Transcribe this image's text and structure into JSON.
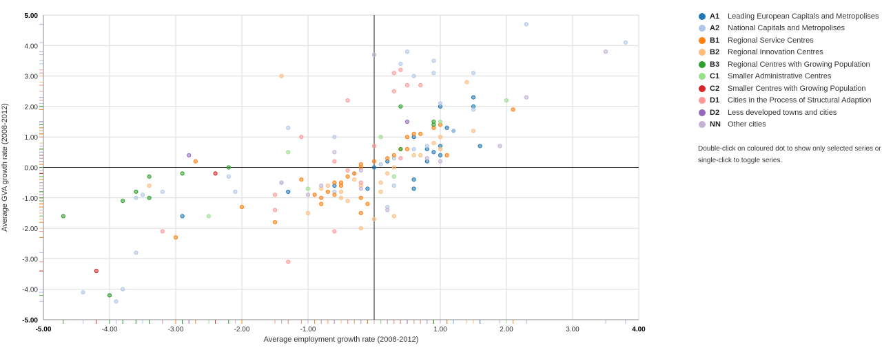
{
  "chart_data": {
    "type": "scatter",
    "xlabel": "Average employment growth rate (2008-2012)",
    "ylabel": "Average GVA growth rate (2008-2012)",
    "xlim": [
      -5,
      4
    ],
    "ylim": [
      -5,
      5
    ],
    "x_ticks": [
      "-5.00",
      "-4.00",
      "-3.00",
      "-2.00",
      "-1.00",
      "1.00",
      "2.00",
      "3.00",
      "4.00"
    ],
    "y_ticks": [
      "5.00",
      "4.00",
      "3.00",
      "2.00",
      "1.00",
      "0.00",
      "-1.00",
      "-2.00",
      "-3.00",
      "-4.00",
      "-5.00"
    ],
    "grid": true,
    "legend_position": "right",
    "series": [
      {
        "code": "A1",
        "name": "Leading European Capitals and Metropolises",
        "color": "#1f77b4",
        "points": [
          [
            1.5,
            2.3
          ],
          [
            1.5,
            2.0
          ],
          [
            1.6,
            0.7
          ],
          [
            1.2,
            1.2
          ],
          [
            1.1,
            1.3
          ],
          [
            1.0,
            2.0
          ],
          [
            1.0,
            0.7
          ],
          [
            1.0,
            0.4
          ],
          [
            0.9,
            0.5
          ],
          [
            0.8,
            0.6
          ],
          [
            0.8,
            0.2
          ],
          [
            0.6,
            1.0
          ],
          [
            0.6,
            -0.4
          ],
          [
            0.6,
            -0.7
          ],
          [
            0.2,
            0.2
          ],
          [
            0.0,
            0.0
          ],
          [
            -0.1,
            -0.7
          ],
          [
            -0.6,
            -0.6
          ],
          [
            -1.3,
            -0.8
          ],
          [
            -2.9,
            -1.6
          ]
        ]
      },
      {
        "code": "A2",
        "name": "National Capitals and Metropolises",
        "color": "#aec7e8",
        "points": [
          [
            2.3,
            4.7
          ],
          [
            3.8,
            4.1
          ],
          [
            0.5,
            3.8
          ],
          [
            0.9,
            3.5
          ],
          [
            0.4,
            3.4
          ],
          [
            0.6,
            3.0
          ],
          [
            0.9,
            3.1
          ],
          [
            1.5,
            3.1
          ],
          [
            1.0,
            2.1
          ],
          [
            1.5,
            1.9
          ],
          [
            1.2,
            1.2
          ],
          [
            0.8,
            0.7
          ],
          [
            0.6,
            0.6
          ],
          [
            0.3,
            0.3
          ],
          [
            0.1,
            0.1
          ],
          [
            -0.6,
            1.0
          ],
          [
            -1.3,
            1.3
          ],
          [
            -0.3,
            -0.2
          ],
          [
            -0.6,
            -0.8
          ],
          [
            -2.1,
            -0.8
          ],
          [
            -2.2,
            -0.3
          ],
          [
            -1.4,
            -0.5
          ],
          [
            -3.2,
            -0.8
          ],
          [
            -3.5,
            -0.9
          ],
          [
            -3.6,
            -1.0
          ],
          [
            -3.6,
            -2.8
          ],
          [
            -3.8,
            -4.0
          ],
          [
            -3.9,
            -4.4
          ],
          [
            -4.4,
            -4.1
          ],
          [
            0.2,
            -1.3
          ],
          [
            0.3,
            -0.6
          ]
        ]
      },
      {
        "code": "B1",
        "name": "Regional Service Centres",
        "color": "#ff7f0e",
        "points": [
          [
            2.1,
            1.9
          ],
          [
            1.0,
            1.4
          ],
          [
            0.9,
            1.3
          ],
          [
            0.7,
            1.1
          ],
          [
            0.6,
            1.1
          ],
          [
            0.5,
            1.0
          ],
          [
            0.4,
            0.6
          ],
          [
            0.5,
            0.6
          ],
          [
            0.3,
            0.4
          ],
          [
            0.2,
            0.3
          ],
          [
            0.0,
            0.2
          ],
          [
            -0.2,
            0.1
          ],
          [
            -0.2,
            0.0
          ],
          [
            -0.3,
            -0.2
          ],
          [
            -0.4,
            -0.3
          ],
          [
            -0.5,
            -0.5
          ],
          [
            -0.5,
            -0.6
          ],
          [
            -0.6,
            -0.5
          ],
          [
            -0.6,
            -0.9
          ],
          [
            -0.7,
            -0.8
          ],
          [
            -0.8,
            -1.0
          ],
          [
            -0.8,
            -1.2
          ],
          [
            -0.9,
            -0.9
          ],
          [
            -0.2,
            -1.0
          ],
          [
            -0.1,
            -1.2
          ],
          [
            -0.2,
            -1.5
          ],
          [
            -1.1,
            -0.4
          ],
          [
            -2.0,
            -1.3
          ],
          [
            -2.7,
            0.2
          ],
          [
            -3.0,
            -2.3
          ],
          [
            -1.5,
            -1.8
          ],
          [
            1.1,
            0.4
          ]
        ]
      },
      {
        "code": "B2",
        "name": "Regional Innovation Centres",
        "color": "#ffbb78",
        "points": [
          [
            1.4,
            2.8
          ],
          [
            1.5,
            1.2
          ],
          [
            1.0,
            1.0
          ],
          [
            0.9,
            0.8
          ],
          [
            0.7,
            0.4
          ],
          [
            0.6,
            0.4
          ],
          [
            0.3,
            0.0
          ],
          [
            0.2,
            -0.2
          ],
          [
            0.1,
            -0.5
          ],
          [
            0.1,
            -0.8
          ],
          [
            -0.2,
            -0.6
          ],
          [
            -0.3,
            -0.4
          ],
          [
            -0.5,
            -0.8
          ],
          [
            -0.5,
            -1.0
          ],
          [
            -0.4,
            -1.1
          ],
          [
            -0.7,
            -0.6
          ],
          [
            -0.8,
            -0.7
          ],
          [
            -1.0,
            -1.5
          ],
          [
            -1.4,
            3.0
          ],
          [
            -0.2,
            -2.0
          ],
          [
            0.0,
            -1.7
          ],
          [
            0.3,
            -1.6
          ],
          [
            1.0,
            0.6
          ],
          [
            -3.4,
            -0.6
          ]
        ]
      },
      {
        "code": "B3",
        "name": "Regional Centres with Growing Population",
        "color": "#2ca02c",
        "points": [
          [
            0.4,
            2.0
          ],
          [
            0.9,
            1.5
          ],
          [
            0.9,
            1.4
          ],
          [
            0.4,
            0.6
          ],
          [
            -2.2,
            0.0
          ],
          [
            -2.9,
            -0.2
          ],
          [
            -3.4,
            -0.3
          ],
          [
            -3.6,
            -0.8
          ],
          [
            -3.4,
            -1.0
          ],
          [
            -3.8,
            -1.1
          ],
          [
            -4.7,
            -1.6
          ],
          [
            -4.0,
            -4.2
          ]
        ]
      },
      {
        "code": "C1",
        "name": "Smaller Administrative Centres",
        "color": "#98df8a",
        "points": [
          [
            2.0,
            2.2
          ],
          [
            1.0,
            1.5
          ],
          [
            0.1,
            1.0
          ],
          [
            0.3,
            -0.3
          ],
          [
            -1.3,
            0.5
          ],
          [
            -1.0,
            -0.7
          ],
          [
            -2.5,
            -1.6
          ]
        ]
      },
      {
        "code": "C2",
        "name": "Smaller Centres with Growing Population",
        "color": "#d62728",
        "points": [
          [
            -2.4,
            -0.2
          ],
          [
            -4.2,
            -3.4
          ]
        ]
      },
      {
        "code": "D1",
        "name": "Cities in the Process of Structural Adaption",
        "color": "#ff9896",
        "points": [
          [
            0.4,
            3.2
          ],
          [
            0.3,
            3.1
          ],
          [
            0.5,
            2.7
          ],
          [
            0.7,
            2.7
          ],
          [
            0.3,
            2.5
          ],
          [
            -0.4,
            2.2
          ],
          [
            -1.1,
            1.0
          ],
          [
            0.0,
            0.7
          ],
          [
            -0.6,
            0.2
          ],
          [
            -0.6,
            -2.1
          ],
          [
            -1.5,
            -0.9
          ],
          [
            -1.5,
            -1.4
          ],
          [
            -1.3,
            -3.1
          ],
          [
            -3.2,
            -2.1
          ],
          [
            -0.2,
            -0.5
          ],
          [
            -0.4,
            -0.1
          ],
          [
            0.4,
            0.3
          ]
        ]
      },
      {
        "code": "D2",
        "name": "Less developed towns and cities",
        "color": "#9467bd",
        "points": [
          [
            -2.8,
            0.4
          ],
          [
            0.5,
            1.5
          ]
        ]
      },
      {
        "code": "NN",
        "name": "Other cities",
        "color": "#c5b0d5",
        "points": [
          [
            3.5,
            3.8
          ],
          [
            2.3,
            2.3
          ],
          [
            1.9,
            0.7
          ],
          [
            1.0,
            0.2
          ],
          [
            0.8,
            0.3
          ],
          [
            0.0,
            3.7
          ],
          [
            -0.6,
            0.5
          ],
          [
            -0.2,
            -0.1
          ],
          [
            -0.2,
            -0.7
          ],
          [
            -1.0,
            -0.9
          ],
          [
            -1.4,
            -0.5
          ],
          [
            -0.8,
            -0.6
          ],
          [
            0.2,
            -1.4
          ]
        ]
      }
    ]
  },
  "legend": {
    "items": [
      {
        "code": "A1",
        "label": "Leading European Capitals and Metropolises",
        "color": "#1f77b4"
      },
      {
        "code": "A2",
        "label": "National Capitals and Metropolises",
        "color": "#aec7e8"
      },
      {
        "code": "B1",
        "label": "Regional Service Centres",
        "color": "#ff7f0e"
      },
      {
        "code": "B2",
        "label": "Regional Innovation Centres",
        "color": "#ffbb78"
      },
      {
        "code": "B3",
        "label": "Regional Centres with Growing Population",
        "color": "#2ca02c"
      },
      {
        "code": "C1",
        "label": "Smaller Administrative Centres",
        "color": "#98df8a"
      },
      {
        "code": "C2",
        "label": "Smaller Centres with Growing Population",
        "color": "#d62728"
      },
      {
        "code": "D1",
        "label": "Cities in the Process of Structural Adaption",
        "color": "#ff9896"
      },
      {
        "code": "D2",
        "label": "Less developed towns and cities",
        "color": "#9467bd"
      },
      {
        "code": "NN",
        "label": "Other cities",
        "color": "#c5b0d5"
      }
    ],
    "note": "Double-click on coloured dot to show only selected series or single-click to toggle series."
  }
}
